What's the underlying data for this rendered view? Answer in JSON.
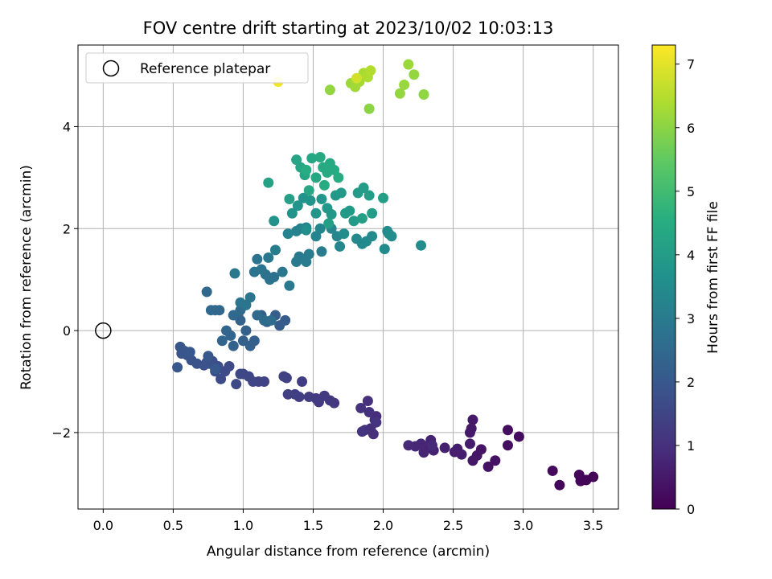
{
  "chart_data": {
    "type": "scatter",
    "title": "FOV centre drift starting at 2023/10/02 10:03:13",
    "xlabel": "Angular distance from reference (arcmin)",
    "ylabel": "Rotation from reference (arcmin)",
    "xlim": [
      -0.18,
      3.68
    ],
    "ylim": [
      -3.5,
      5.6
    ],
    "xticks": [
      0.0,
      0.5,
      1.0,
      1.5,
      2.0,
      2.5,
      3.0,
      3.5
    ],
    "yticks": [
      -2,
      0,
      2,
      4
    ],
    "grid": true,
    "legend": {
      "placement": "top-left",
      "entries": [
        "Reference platepar"
      ]
    },
    "colorbar": {
      "label": "Hours from first FF file",
      "min": 0,
      "max": 7.3,
      "ticks": [
        0,
        1,
        2,
        3,
        4,
        5,
        6,
        7
      ],
      "colormap": "viridis"
    },
    "reference_point": {
      "x": 0.0,
      "y": 0.0,
      "label": "Reference platepar"
    },
    "series": [
      {
        "points": [
          [
            3.5,
            -2.87,
            0.05
          ],
          [
            3.45,
            -2.93,
            0.08
          ],
          [
            3.41,
            -2.95,
            0.1
          ],
          [
            3.4,
            -2.83,
            0.12
          ],
          [
            3.26,
            -3.03,
            0.15
          ],
          [
            3.21,
            -2.75,
            0.18
          ],
          [
            2.97,
            -2.08,
            0.25
          ],
          [
            2.89,
            -1.95,
            0.28
          ],
          [
            2.89,
            -2.25,
            0.3
          ],
          [
            2.8,
            -2.55,
            0.33
          ],
          [
            2.75,
            -2.67,
            0.36
          ],
          [
            2.7,
            -2.33,
            0.4
          ],
          [
            2.67,
            -2.45,
            0.42
          ],
          [
            2.64,
            -2.55,
            0.45
          ],
          [
            2.64,
            -1.75,
            0.48
          ],
          [
            2.63,
            -1.92,
            0.5
          ],
          [
            2.62,
            -2.0,
            0.52
          ],
          [
            2.62,
            -2.22,
            0.55
          ],
          [
            2.56,
            -2.43,
            0.58
          ],
          [
            2.53,
            -2.32,
            0.6
          ],
          [
            2.51,
            -2.38,
            0.63
          ],
          [
            2.44,
            -2.3,
            0.66
          ],
          [
            2.36,
            -2.35,
            0.68
          ],
          [
            2.34,
            -2.15,
            0.7
          ],
          [
            2.32,
            -2.28,
            0.72
          ],
          [
            2.29,
            -2.39,
            0.75
          ],
          [
            2.27,
            -2.22,
            0.78
          ],
          [
            2.23,
            -2.27,
            0.8
          ],
          [
            2.18,
            -2.25,
            0.82
          ],
          [
            2.35,
            -2.25,
            0.85
          ],
          [
            1.95,
            -1.68,
            0.9
          ],
          [
            1.94,
            -1.75,
            0.92
          ],
          [
            1.93,
            -2.03,
            0.95
          ],
          [
            1.91,
            -1.92,
            0.98
          ],
          [
            1.9,
            -1.6,
            1.0
          ],
          [
            1.89,
            -1.38,
            1.02
          ],
          [
            1.87,
            -1.95,
            1.04
          ],
          [
            1.84,
            -1.52,
            1.06
          ],
          [
            1.85,
            -1.98,
            1.08
          ],
          [
            1.95,
            -1.8,
            1.1
          ],
          [
            1.65,
            -1.42,
            1.15
          ],
          [
            1.62,
            -1.37,
            1.18
          ],
          [
            1.58,
            -1.28,
            1.2
          ],
          [
            1.54,
            -1.4,
            1.22
          ],
          [
            1.52,
            -1.33,
            1.25
          ],
          [
            1.47,
            -1.3,
            1.28
          ],
          [
            1.42,
            -1.0,
            1.3
          ],
          [
            1.4,
            -1.3,
            1.32
          ],
          [
            1.37,
            -1.25,
            1.35
          ],
          [
            1.32,
            -1.25,
            1.38
          ],
          [
            1.31,
            -0.93,
            1.4
          ],
          [
            1.29,
            -0.9,
            1.42
          ],
          [
            1.15,
            -1.0,
            1.45
          ],
          [
            1.11,
            -1.0,
            1.48
          ],
          [
            1.07,
            -1.0,
            1.5
          ],
          [
            1.04,
            -0.9,
            1.52
          ],
          [
            1.0,
            -0.85,
            1.55
          ],
          [
            0.98,
            -0.85,
            1.57
          ],
          [
            0.95,
            -1.05,
            1.6
          ],
          [
            0.9,
            -0.7,
            1.62
          ],
          [
            0.87,
            -0.8,
            1.65
          ],
          [
            0.84,
            -0.95,
            1.68
          ],
          [
            0.82,
            -0.7,
            1.7
          ],
          [
            0.8,
            -0.8,
            1.72
          ],
          [
            0.78,
            -0.6,
            1.75
          ],
          [
            0.76,
            -0.65,
            1.77
          ],
          [
            0.74,
            -0.62,
            1.8
          ],
          [
            0.72,
            -0.68,
            1.82
          ],
          [
            0.67,
            -0.65,
            1.84
          ],
          [
            0.63,
            -0.58,
            1.86
          ],
          [
            0.6,
            -0.48,
            1.88
          ],
          [
            0.58,
            -0.4,
            1.9
          ],
          [
            0.56,
            -0.45,
            1.92
          ],
          [
            0.55,
            -0.32,
            1.94
          ],
          [
            0.53,
            -0.72,
            1.96
          ],
          [
            0.62,
            -0.42,
            1.98
          ],
          [
            0.75,
            -0.5,
            2.0
          ],
          [
            0.8,
            -0.75,
            2.02
          ],
          [
            1.3,
            0.2,
            2.1
          ],
          [
            1.26,
            0.1,
            2.12
          ],
          [
            1.23,
            0.3,
            2.14
          ],
          [
            1.17,
            0.17,
            2.16
          ],
          [
            1.13,
            0.3,
            2.18
          ],
          [
            1.08,
            -0.2,
            2.2
          ],
          [
            1.05,
            -0.3,
            2.22
          ],
          [
            1.02,
            0.0,
            2.24
          ],
          [
            1.0,
            -0.2,
            2.26
          ],
          [
            0.98,
            0.2,
            2.28
          ],
          [
            0.96,
            0.3,
            2.3
          ],
          [
            0.93,
            -0.3,
            2.32
          ],
          [
            0.91,
            -0.1,
            2.34
          ],
          [
            0.88,
            0.0,
            2.36
          ],
          [
            0.85,
            -0.2,
            2.38
          ],
          [
            0.83,
            0.4,
            2.4
          ],
          [
            0.8,
            0.4,
            2.42
          ],
          [
            0.77,
            0.4,
            2.44
          ],
          [
            0.74,
            0.76,
            2.46
          ],
          [
            0.93,
            0.3,
            2.48
          ],
          [
            0.98,
            0.4,
            2.5
          ],
          [
            1.1,
            0.3,
            2.52
          ],
          [
            1.15,
            0.2,
            2.54
          ],
          [
            1.2,
            0.2,
            2.56
          ],
          [
            1.22,
            1.05,
            2.7
          ],
          [
            1.19,
            1.0,
            2.72
          ],
          [
            1.16,
            1.1,
            2.74
          ],
          [
            1.13,
            1.2,
            2.76
          ],
          [
            1.1,
            1.4,
            2.78
          ],
          [
            1.08,
            1.15,
            2.8
          ],
          [
            1.05,
            0.65,
            2.82
          ],
          [
            1.02,
            0.5,
            2.84
          ],
          [
            0.98,
            0.55,
            2.86
          ],
          [
            0.94,
            1.12,
            2.88
          ],
          [
            1.18,
            1.43,
            2.9
          ],
          [
            1.28,
            1.15,
            2.92
          ],
          [
            1.33,
            0.88,
            2.94
          ],
          [
            1.38,
            1.35,
            2.96
          ],
          [
            1.4,
            1.45,
            2.98
          ],
          [
            1.45,
            1.35,
            3.0
          ],
          [
            1.47,
            1.5,
            3.02
          ],
          [
            1.56,
            1.55,
            3.04
          ],
          [
            1.23,
            1.58,
            3.06
          ],
          [
            1.32,
            1.9,
            3.2
          ],
          [
            1.38,
            1.95,
            3.22
          ],
          [
            1.41,
            2.0,
            3.24
          ],
          [
            1.45,
            2.02,
            3.26
          ],
          [
            1.52,
            1.85,
            3.28
          ],
          [
            1.55,
            2.0,
            3.3
          ],
          [
            1.63,
            2.0,
            3.32
          ],
          [
            1.67,
            1.85,
            3.34
          ],
          [
            1.69,
            1.65,
            3.36
          ],
          [
            1.81,
            1.8,
            3.38
          ],
          [
            1.85,
            1.7,
            3.4
          ],
          [
            1.88,
            1.75,
            3.42
          ],
          [
            1.92,
            1.85,
            3.44
          ],
          [
            2.01,
            1.6,
            3.46
          ],
          [
            2.03,
            1.95,
            3.48
          ],
          [
            2.06,
            1.85,
            3.5
          ],
          [
            2.04,
            1.9,
            3.52
          ],
          [
            2.27,
            1.67,
            3.54
          ],
          [
            1.72,
            1.9,
            3.56
          ],
          [
            1.45,
            1.97,
            3.58
          ],
          [
            1.22,
            2.15,
            3.7
          ],
          [
            1.35,
            2.3,
            3.72
          ],
          [
            1.39,
            2.45,
            3.74
          ],
          [
            1.43,
            2.6,
            3.76
          ],
          [
            1.48,
            2.55,
            3.78
          ],
          [
            1.52,
            2.3,
            3.8
          ],
          [
            1.56,
            2.58,
            3.82
          ],
          [
            1.6,
            2.4,
            3.84
          ],
          [
            1.63,
            2.28,
            3.86
          ],
          [
            1.66,
            2.65,
            3.88
          ],
          [
            1.7,
            2.7,
            3.9
          ],
          [
            1.73,
            2.3,
            3.92
          ],
          [
            1.76,
            2.35,
            3.94
          ],
          [
            1.79,
            2.15,
            3.96
          ],
          [
            1.82,
            2.7,
            3.98
          ],
          [
            1.86,
            2.8,
            4.0
          ],
          [
            1.9,
            2.65,
            4.02
          ],
          [
            1.92,
            2.3,
            4.04
          ],
          [
            1.85,
            2.2,
            4.06
          ],
          [
            2.0,
            2.6,
            4.08
          ],
          [
            1.61,
            2.1,
            4.1
          ],
          [
            1.33,
            2.58,
            4.12
          ],
          [
            1.18,
            2.9,
            4.15
          ],
          [
            1.38,
            3.35,
            4.25
          ],
          [
            1.41,
            3.2,
            4.27
          ],
          [
            1.44,
            3.05,
            4.29
          ],
          [
            1.47,
            2.75,
            4.31
          ],
          [
            1.49,
            3.38,
            4.33
          ],
          [
            1.52,
            3.0,
            4.35
          ],
          [
            1.55,
            3.4,
            4.37
          ],
          [
            1.57,
            3.2,
            4.39
          ],
          [
            1.6,
            3.1,
            4.41
          ],
          [
            1.62,
            3.28,
            4.43
          ],
          [
            1.65,
            3.15,
            4.45
          ],
          [
            1.68,
            3.0,
            4.47
          ],
          [
            1.58,
            2.85,
            4.49
          ],
          [
            1.45,
            3.15,
            4.51
          ],
          [
            1.25,
            4.88,
            7.2
          ],
          [
            1.62,
            4.72,
            6.1
          ],
          [
            1.77,
            4.85,
            6.2
          ],
          [
            1.8,
            4.78,
            6.25
          ],
          [
            1.83,
            4.88,
            6.3
          ],
          [
            1.86,
            5.05,
            6.35
          ],
          [
            1.89,
            4.97,
            6.4
          ],
          [
            1.91,
            5.1,
            6.45
          ],
          [
            1.9,
            4.35,
            6.0
          ],
          [
            2.12,
            4.65,
            6.1
          ],
          [
            2.15,
            4.82,
            6.15
          ],
          [
            2.18,
            5.22,
            6.2
          ],
          [
            2.22,
            5.02,
            6.1
          ],
          [
            2.29,
            4.63,
            6.05
          ],
          [
            1.81,
            4.95,
            6.8
          ]
        ]
      }
    ]
  }
}
